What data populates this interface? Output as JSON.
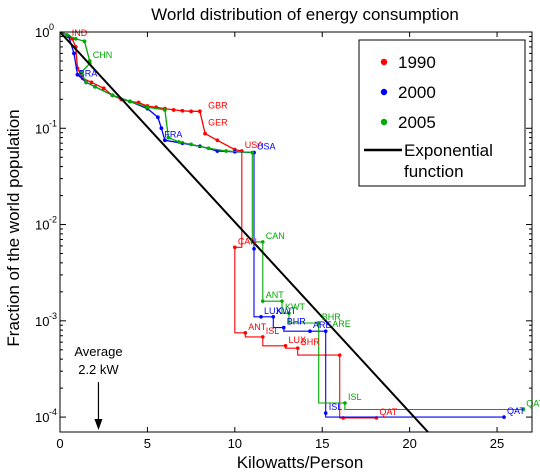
{
  "chart_data": {
    "type": "line",
    "title": "World distribution of energy consumption",
    "xlabel": "Kilowatts/Person",
    "ylabel": "Fraction of the world population",
    "xlim": [
      0,
      27
    ],
    "ylim": [
      7e-05,
      1
    ],
    "yscale": "log",
    "xticks": [
      "0",
      "5",
      "10",
      "15",
      "20",
      "25"
    ],
    "yticks": [
      {
        "base": "10",
        "exp": "0",
        "value": 1
      },
      {
        "base": "10",
        "exp": "-1",
        "value": 0.1
      },
      {
        "base": "10",
        "exp": "-2",
        "value": 0.01
      },
      {
        "base": "10",
        "exp": "-3",
        "value": 0.001
      },
      {
        "base": "10",
        "exp": "-4",
        "value": 0.0001
      }
    ],
    "legend_position": "top-right",
    "series": [
      {
        "name": "1990",
        "color": "#ff0000",
        "points": [
          [
            0.1,
            1.0
          ],
          [
            0.4,
            0.92
          ],
          [
            0.7,
            0.85
          ],
          [
            0.9,
            0.7
          ],
          [
            1.0,
            0.42
          ],
          [
            1.3,
            0.33
          ],
          [
            1.8,
            0.3
          ],
          [
            2.5,
            0.26
          ],
          [
            3.0,
            0.22
          ],
          [
            3.5,
            0.2
          ],
          [
            4.0,
            0.19
          ],
          [
            4.5,
            0.185
          ],
          [
            5.0,
            0.17
          ],
          [
            5.5,
            0.165
          ],
          [
            6.0,
            0.16
          ],
          [
            6.5,
            0.155
          ],
          [
            7.0,
            0.152
          ],
          [
            7.5,
            0.15
          ],
          [
            8.0,
            0.15
          ],
          [
            8.3,
            0.088
          ],
          [
            9.0,
            0.075
          ],
          [
            10.0,
            0.06
          ],
          [
            10.4,
            0.058
          ]
        ],
        "tail_points": [
          [
            10.0,
            0.0058
          ],
          [
            10.6,
            0.00075
          ],
          [
            11.6,
            0.00068
          ],
          [
            12.9,
            0.00055
          ],
          [
            13.6,
            0.00052
          ],
          [
            16.0,
            0.00044
          ],
          [
            16.2,
            9.8e-05
          ],
          [
            18.1,
            9.8e-05
          ]
        ],
        "labels": [
          {
            "text": "IND",
            "x": 0.5,
            "y": 0.85
          },
          {
            "text": "GBR",
            "x": 8.3,
            "y": 0.15
          },
          {
            "text": "GER",
            "x": 8.3,
            "y": 0.1
          },
          {
            "text": "USA",
            "x": 10.4,
            "y": 0.058
          },
          {
            "text": "CAN",
            "x": 10.0,
            "y": 0.0058
          },
          {
            "text": "ANT",
            "x": 10.6,
            "y": 0.00075
          },
          {
            "text": "ISL",
            "x": 11.6,
            "y": 0.00068
          },
          {
            "text": "LUX",
            "x": 12.9,
            "y": 0.00055
          },
          {
            "text": "BHR",
            "x": 13.6,
            "y": 0.00052
          },
          {
            "text": "QAT",
            "x": 18.1,
            "y": 9.8e-05
          }
        ]
      },
      {
        "name": "2000",
        "color": "#0000ff",
        "points": [
          [
            0.1,
            1.0
          ],
          [
            0.5,
            0.9
          ],
          [
            0.8,
            0.6
          ],
          [
            1.0,
            0.36
          ],
          [
            1.5,
            0.3
          ],
          [
            2.0,
            0.27
          ],
          [
            3.0,
            0.22
          ],
          [
            4.0,
            0.19
          ],
          [
            5.0,
            0.16
          ],
          [
            5.6,
            0.13
          ],
          [
            5.8,
            0.1
          ],
          [
            6.0,
            0.075
          ],
          [
            7.0,
            0.07
          ],
          [
            8.0,
            0.065
          ],
          [
            9.0,
            0.058
          ],
          [
            10.0,
            0.057
          ],
          [
            11.1,
            0.056
          ]
        ],
        "tail_points": [
          [
            11.1,
            0.0056
          ],
          [
            11.5,
            0.0011
          ],
          [
            12.2,
            0.0011
          ],
          [
            12.8,
            0.00085
          ],
          [
            14.3,
            0.00078
          ],
          [
            15.2,
            0.00078
          ],
          [
            15.2,
            0.00011
          ],
          [
            25.4,
            0.0001
          ]
        ],
        "labels": [
          {
            "text": "BRA",
            "x": 0.9,
            "y": 0.32
          },
          {
            "text": "FRA",
            "x": 5.8,
            "y": 0.075
          },
          {
            "text": "USA",
            "x": 11.1,
            "y": 0.056
          },
          {
            "text": "KWT",
            "x": 12.2,
            "y": 0.0011
          },
          {
            "text": "LUX",
            "x": 11.5,
            "y": 0.0011
          },
          {
            "text": "BHR",
            "x": 12.8,
            "y": 0.00085
          },
          {
            "text": "ARE",
            "x": 14.3,
            "y": 0.00078
          },
          {
            "text": "ISL",
            "x": 15.2,
            "y": 0.00011
          },
          {
            "text": "QAT",
            "x": 25.4,
            "y": 0.0001
          }
        ]
      },
      {
        "name": "2005",
        "color": "#00aa00",
        "points": [
          [
            0.1,
            1.0
          ],
          [
            0.4,
            0.93
          ],
          [
            0.9,
            0.85
          ],
          [
            1.4,
            0.8
          ],
          [
            1.7,
            0.5
          ],
          [
            1.7,
            0.47
          ],
          [
            1.2,
            0.38
          ],
          [
            1.5,
            0.3
          ],
          [
            2.0,
            0.27
          ],
          [
            3.0,
            0.22
          ],
          [
            4.0,
            0.19
          ],
          [
            5.0,
            0.165
          ],
          [
            6.0,
            0.155
          ],
          [
            6.2,
            0.08
          ],
          [
            6.8,
            0.072
          ],
          [
            7.5,
            0.068
          ],
          [
            8.5,
            0.062
          ],
          [
            9.5,
            0.058
          ],
          [
            11.0,
            0.056
          ]
        ],
        "tail_points": [
          [
            11.0,
            0.0066
          ],
          [
            11.6,
            0.0066
          ],
          [
            11.6,
            0.0016
          ],
          [
            12.7,
            0.0016
          ],
          [
            13.1,
            0.0012
          ],
          [
            14.8,
            0.00095
          ],
          [
            16.3,
            0.00014
          ],
          [
            26.5,
            0.00012
          ]
        ],
        "labels": [
          {
            "text": "CHN",
            "x": 1.7,
            "y": 0.5
          },
          {
            "text": "CAN",
            "x": 11.6,
            "y": 0.0066
          },
          {
            "text": "ANT",
            "x": 11.6,
            "y": 0.0016
          },
          {
            "text": "KWT",
            "x": 12.7,
            "y": 0.0012
          },
          {
            "text": "BHR",
            "x": 14.8,
            "y": 0.00095
          },
          {
            "text": "ARE",
            "x": 15.4,
            "y": 0.0008
          },
          {
            "text": "ISL",
            "x": 16.3,
            "y": 0.00014
          },
          {
            "text": "QAT",
            "x": 26.5,
            "y": 0.00012
          }
        ]
      }
    ],
    "reference_line": {
      "name": "Exponential function",
      "name_lines": [
        "Exponential",
        "function"
      ],
      "color": "#000000",
      "mean_kw": 2.2
    },
    "annotation": {
      "lines": [
        "Average",
        "2.2 kW"
      ],
      "x": 2.2
    }
  }
}
